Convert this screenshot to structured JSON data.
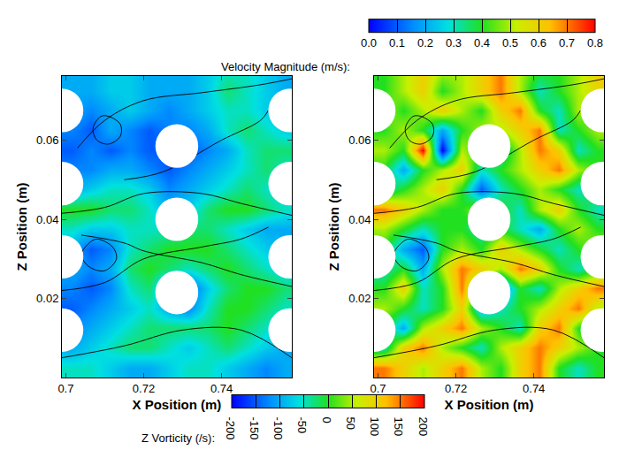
{
  "chart_data": [
    {
      "type": "heatmap",
      "x_label": "X Position (m)",
      "y_label": "Z Position (m)",
      "xlim": [
        0.699,
        0.758
      ],
      "ylim": [
        0,
        0.0762
      ],
      "xticks": [
        0.7,
        0.72,
        0.74
      ],
      "yticks": [
        0.02,
        0.04,
        0.06
      ],
      "x": [
        0.7015,
        0.7065,
        0.7115,
        0.7165,
        0.7215,
        0.7265,
        0.7315,
        0.7365,
        0.7415,
        0.7465,
        0.7515,
        0.7565
      ],
      "z": [
        0.0025,
        0.0075,
        0.0125,
        0.0175,
        0.0225,
        0.0275,
        0.0325,
        0.0375,
        0.0425,
        0.0475,
        0.0525,
        0.0575,
        0.0625,
        0.0675,
        0.0725,
        0.0775
      ],
      "values": [
        [
          0.3,
          0.3,
          0.25,
          0.2,
          0.2,
          0.25,
          0.3,
          0.3,
          0.25,
          0.2,
          0.15,
          0.2
        ],
        [
          0.2,
          0.25,
          0.3,
          0.35,
          0.35,
          0.3,
          0.25,
          0.3,
          0.35,
          0.3,
          0.25,
          0.2
        ],
        [
          0.15,
          0.2,
          0.25,
          0.3,
          0.35,
          0.35,
          0.35,
          0.35,
          0.4,
          0.35,
          0.3,
          0.25
        ],
        [
          0.1,
          0.15,
          0.2,
          0.25,
          0.3,
          0.2,
          0.15,
          0.3,
          0.4,
          0.4,
          0.35,
          0.3
        ],
        [
          0.15,
          0.1,
          0.15,
          0.3,
          0.35,
          0.15,
          0.1,
          0.25,
          0.35,
          0.4,
          0.4,
          0.35
        ],
        [
          0.2,
          0.15,
          0.2,
          0.35,
          0.4,
          0.35,
          0.3,
          0.35,
          0.4,
          0.35,
          0.3,
          0.25
        ],
        [
          0.2,
          0.1,
          0.15,
          0.3,
          0.35,
          0.4,
          0.4,
          0.4,
          0.35,
          0.3,
          0.25,
          0.2
        ],
        [
          0.3,
          0.25,
          0.25,
          0.3,
          0.3,
          0.3,
          0.35,
          0.35,
          0.3,
          0.25,
          0.2,
          0.2
        ],
        [
          0.4,
          0.4,
          0.35,
          0.35,
          0.3,
          0.2,
          0.25,
          0.35,
          0.4,
          0.4,
          0.35,
          0.3
        ],
        [
          0.2,
          0.25,
          0.3,
          0.3,
          0.25,
          0.15,
          0.2,
          0.25,
          0.3,
          0.35,
          0.3,
          0.25
        ],
        [
          0.15,
          0.15,
          0.2,
          0.2,
          0.15,
          0.1,
          0.15,
          0.2,
          0.25,
          0.3,
          0.35,
          0.3
        ],
        [
          0.1,
          0.15,
          0.1,
          0.15,
          0.1,
          0.1,
          0.1,
          0.15,
          0.2,
          0.3,
          0.35,
          0.35
        ],
        [
          0.15,
          0.1,
          0.2,
          0.15,
          0.1,
          0.15,
          0.15,
          0.2,
          0.3,
          0.35,
          0.3,
          0.25
        ],
        [
          0.2,
          0.15,
          0.2,
          0.25,
          0.2,
          0.15,
          0.2,
          0.25,
          0.3,
          0.3,
          0.25,
          0.2
        ],
        [
          0.2,
          0.2,
          0.25,
          0.25,
          0.2,
          0.2,
          0.2,
          0.25,
          0.35,
          0.3,
          0.25,
          0.2
        ],
        [
          0.2,
          0.2,
          0.25,
          0.25,
          0.2,
          0.2,
          0.2,
          0.25,
          0.3,
          0.3,
          0.25,
          0.2
        ]
      ],
      "colorbar": {
        "title": "Velocity Magnitude (m/s):",
        "range": [
          0,
          0.8
        ],
        "ticks": [
          {
            "value": 0,
            "label": "0.0"
          },
          0.1,
          0.2,
          0.3,
          0.4,
          0.5,
          0.6,
          0.7,
          0.8
        ]
      },
      "cylinders": {
        "radius": 0.0055,
        "centers": [
          [
            0.699,
            0.0675
          ],
          [
            0.699,
            0.049
          ],
          [
            0.699,
            0.0305
          ],
          [
            0.699,
            0.012
          ],
          [
            0.7285,
            0.0585
          ],
          [
            0.7285,
            0.04
          ],
          [
            0.7285,
            0.0215
          ],
          [
            0.7575,
            0.0675
          ],
          [
            0.7575,
            0.049
          ],
          [
            0.7575,
            0.0305
          ],
          [
            0.7575,
            0.012
          ]
        ]
      },
      "streamlines": [
        [
          [
            0.699,
            0.0415
          ],
          [
            0.71,
            0.043
          ],
          [
            0.72,
            0.0465
          ],
          [
            0.735,
            0.0465
          ],
          [
            0.745,
            0.044
          ],
          [
            0.758,
            0.041
          ]
        ],
        [
          [
            0.699,
            0.022
          ],
          [
            0.71,
            0.024
          ],
          [
            0.72,
            0.03
          ],
          [
            0.735,
            0.033
          ],
          [
            0.745,
            0.035
          ],
          [
            0.752,
            0.038
          ]
        ],
        [
          [
            0.699,
            0.005
          ],
          [
            0.715,
            0.008
          ],
          [
            0.73,
            0.012
          ],
          [
            0.745,
            0.012
          ],
          [
            0.758,
            0.005
          ]
        ],
        [
          [
            0.703,
            0.058
          ],
          [
            0.71,
            0.065
          ],
          [
            0.72,
            0.07
          ],
          [
            0.735,
            0.072
          ],
          [
            0.75,
            0.074
          ],
          [
            0.758,
            0.0755
          ]
        ],
        [
          [
            0.715,
            0.05
          ],
          [
            0.725,
            0.052
          ],
          [
            0.74,
            0.06
          ],
          [
            0.75,
            0.065
          ],
          [
            0.752,
            0.0675
          ]
        ],
        [
          [
            0.704,
            0.036
          ],
          [
            0.715,
            0.034
          ],
          [
            0.72,
            0.032
          ],
          [
            0.735,
            0.029
          ],
          [
            0.745,
            0.026
          ],
          [
            0.758,
            0.023
          ]
        ],
        [
          [
            0.708,
            0.035
          ],
          [
            0.712,
            0.033
          ],
          [
            0.713,
            0.03
          ],
          [
            0.71,
            0.027
          ],
          [
            0.706,
            0.028
          ],
          [
            0.704,
            0.031
          ],
          [
            0.706,
            0.034
          ],
          [
            0.708,
            0.035
          ]
        ],
        [
          [
            0.711,
            0.066
          ],
          [
            0.714,
            0.064
          ],
          [
            0.714,
            0.061
          ],
          [
            0.711,
            0.059
          ],
          [
            0.708,
            0.06
          ],
          [
            0.707,
            0.063
          ],
          [
            0.709,
            0.066
          ],
          [
            0.711,
            0.066
          ]
        ]
      ]
    },
    {
      "type": "heatmap",
      "x_label": "X Position (m)",
      "y_label": "Z Position (m)",
      "xlim": [
        0.699,
        0.758
      ],
      "ylim": [
        0,
        0.0762
      ],
      "xticks": [
        0.7,
        0.72,
        0.74
      ],
      "yticks": [
        0.02,
        0.04,
        0.06
      ],
      "x": [
        0.7015,
        0.7065,
        0.7115,
        0.7165,
        0.7215,
        0.7265,
        0.7315,
        0.7365,
        0.7415,
        0.7465,
        0.7515,
        0.7565
      ],
      "z": [
        0.0025,
        0.0075,
        0.0125,
        0.0175,
        0.0225,
        0.0275,
        0.0325,
        0.0375,
        0.0425,
        0.0475,
        0.0525,
        0.0575,
        0.0625,
        0.0675,
        0.0725,
        0.0775
      ],
      "values": [
        [
          150,
          100,
          50,
          100,
          150,
          50,
          0,
          100,
          150,
          0,
          -50,
          0
        ],
        [
          -50,
          100,
          150,
          50,
          0,
          -50,
          50,
          100,
          150,
          100,
          50,
          0
        ],
        [
          0,
          -100,
          50,
          100,
          150,
          50,
          0,
          -50,
          100,
          150,
          0,
          -50
        ],
        [
          50,
          0,
          -50,
          0,
          100,
          -100,
          -50,
          0,
          50,
          100,
          150,
          50
        ],
        [
          0,
          100,
          -50,
          0,
          150,
          -50,
          -150,
          0,
          -50,
          50,
          100,
          150
        ],
        [
          -50,
          0,
          -100,
          50,
          150,
          100,
          50,
          150,
          100,
          0,
          -50,
          0
        ],
        [
          0,
          -100,
          -150,
          0,
          50,
          0,
          100,
          50,
          0,
          -50,
          0,
          50
        ],
        [
          50,
          0,
          -50,
          0,
          0,
          -50,
          0,
          -50,
          -100,
          0,
          50,
          0
        ],
        [
          150,
          100,
          50,
          0,
          0,
          50,
          0,
          -50,
          50,
          100,
          0,
          -50
        ],
        [
          -50,
          0,
          50,
          100,
          0,
          -150,
          -50,
          0,
          50,
          0,
          -50,
          0
        ],
        [
          0,
          -100,
          0,
          50,
          100,
          -50,
          0,
          50,
          100,
          150,
          50,
          0
        ],
        [
          50,
          0,
          200,
          -200,
          50,
          0,
          -50,
          50,
          150,
          100,
          -50,
          0
        ],
        [
          0,
          50,
          0,
          -100,
          0,
          50,
          50,
          100,
          150,
          -50,
          0,
          50
        ],
        [
          50,
          0,
          50,
          100,
          50,
          0,
          100,
          150,
          0,
          -50,
          50,
          0
        ],
        [
          0,
          50,
          100,
          0,
          50,
          100,
          150,
          50,
          -50,
          0,
          50,
          100
        ],
        [
          0,
          50,
          100,
          50,
          50,
          100,
          150,
          50,
          0,
          0,
          50,
          100
        ]
      ],
      "colorbar": {
        "title": "Z Vorticity (/s):",
        "range": [
          -200,
          200
        ],
        "ticks": [
          -200,
          -150,
          -100,
          -50,
          0,
          50,
          100,
          150,
          200
        ]
      },
      "cylinders": {
        "radius": 0.0055,
        "centers": [
          [
            0.699,
            0.0675
          ],
          [
            0.699,
            0.049
          ],
          [
            0.699,
            0.0305
          ],
          [
            0.699,
            0.012
          ],
          [
            0.7285,
            0.0585
          ],
          [
            0.7285,
            0.04
          ],
          [
            0.7285,
            0.0215
          ],
          [
            0.7575,
            0.0675
          ],
          [
            0.7575,
            0.049
          ],
          [
            0.7575,
            0.0305
          ],
          [
            0.7575,
            0.012
          ]
        ]
      },
      "streamlines": [
        [
          [
            0.699,
            0.0415
          ],
          [
            0.71,
            0.043
          ],
          [
            0.72,
            0.0465
          ],
          [
            0.735,
            0.0465
          ],
          [
            0.745,
            0.044
          ],
          [
            0.758,
            0.041
          ]
        ],
        [
          [
            0.699,
            0.022
          ],
          [
            0.71,
            0.024
          ],
          [
            0.72,
            0.03
          ],
          [
            0.735,
            0.033
          ],
          [
            0.745,
            0.035
          ],
          [
            0.752,
            0.038
          ]
        ],
        [
          [
            0.699,
            0.005
          ],
          [
            0.715,
            0.008
          ],
          [
            0.73,
            0.012
          ],
          [
            0.745,
            0.012
          ],
          [
            0.758,
            0.005
          ]
        ],
        [
          [
            0.703,
            0.058
          ],
          [
            0.71,
            0.065
          ],
          [
            0.72,
            0.07
          ],
          [
            0.735,
            0.072
          ],
          [
            0.75,
            0.074
          ],
          [
            0.758,
            0.0755
          ]
        ],
        [
          [
            0.715,
            0.05
          ],
          [
            0.725,
            0.052
          ],
          [
            0.74,
            0.06
          ],
          [
            0.75,
            0.065
          ],
          [
            0.752,
            0.0675
          ]
        ],
        [
          [
            0.704,
            0.036
          ],
          [
            0.715,
            0.034
          ],
          [
            0.72,
            0.032
          ],
          [
            0.735,
            0.029
          ],
          [
            0.745,
            0.026
          ],
          [
            0.758,
            0.023
          ]
        ],
        [
          [
            0.708,
            0.035
          ],
          [
            0.712,
            0.033
          ],
          [
            0.713,
            0.03
          ],
          [
            0.71,
            0.027
          ],
          [
            0.706,
            0.028
          ],
          [
            0.704,
            0.031
          ],
          [
            0.706,
            0.034
          ],
          [
            0.708,
            0.035
          ]
        ],
        [
          [
            0.711,
            0.066
          ],
          [
            0.714,
            0.064
          ],
          [
            0.714,
            0.061
          ],
          [
            0.711,
            0.059
          ],
          [
            0.708,
            0.06
          ],
          [
            0.707,
            0.063
          ],
          [
            0.709,
            0.066
          ],
          [
            0.711,
            0.066
          ]
        ]
      ]
    }
  ]
}
